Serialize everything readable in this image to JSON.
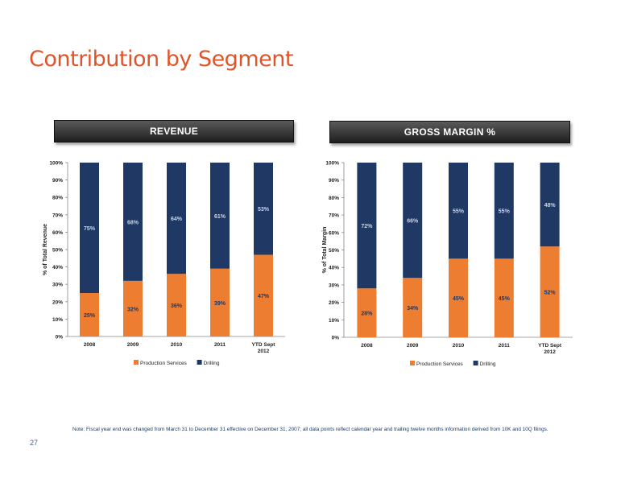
{
  "page": {
    "title": "Contribution by Segment",
    "note": "Note: Fiscal year end was changed from March 31 to December 31 effective on December 31, 2007; all data points reflect calendar year and trailing twelve months information derived from 10K and 10Q filings.",
    "page_number": "27"
  },
  "colors": {
    "drilling": "#1f3864",
    "production": "#ed7d31",
    "label_light": "#c9d4e6",
    "label_dark": "#1f3864"
  },
  "chart_data": [
    {
      "type": "bar",
      "stacked": true,
      "header": "REVENUE",
      "title": "",
      "ylabel": "% of Total Revenue",
      "xlabel": "",
      "ylim": [
        0,
        100
      ],
      "yticks": [
        "0%",
        "10%",
        "20%",
        "30%",
        "40%",
        "50%",
        "60%",
        "70%",
        "80%",
        "90%",
        "100%"
      ],
      "categories": [
        "2008",
        "2009",
        "2010",
        "2011",
        "YTD Sept 2012"
      ],
      "series": [
        {
          "name": "Production Services",
          "values": [
            25,
            32,
            36,
            39,
            47
          ],
          "labels": [
            "25%",
            "32%",
            "36%",
            "39%",
            "47%"
          ]
        },
        {
          "name": "Drilling",
          "values": [
            75,
            68,
            64,
            61,
            53
          ],
          "labels": [
            "75%",
            "68%",
            "64%",
            "61%",
            "53%"
          ]
        }
      ],
      "legend": "bottom",
      "grid": false
    },
    {
      "type": "bar",
      "stacked": true,
      "header": "GROSS MARGIN %",
      "title": "",
      "ylabel": "% of Total Margin",
      "xlabel": "",
      "ylim": [
        0,
        100
      ],
      "yticks": [
        "0%",
        "10%",
        "20%",
        "30%",
        "40%",
        "50%",
        "60%",
        "70%",
        "80%",
        "90%",
        "100%"
      ],
      "categories": [
        "2008",
        "2009",
        "2010",
        "2011",
        "YTD Sept 2012"
      ],
      "series": [
        {
          "name": "Production Services",
          "values": [
            28,
            34,
            45,
            45,
            52
          ],
          "labels": [
            "28%",
            "34%",
            "45%",
            "45%",
            "52%"
          ]
        },
        {
          "name": "Drilling",
          "values": [
            72,
            66,
            55,
            55,
            48
          ],
          "labels": [
            "72%",
            "66%",
            "55%",
            "55%",
            "48%"
          ]
        }
      ],
      "legend": "bottom",
      "grid": false
    }
  ]
}
